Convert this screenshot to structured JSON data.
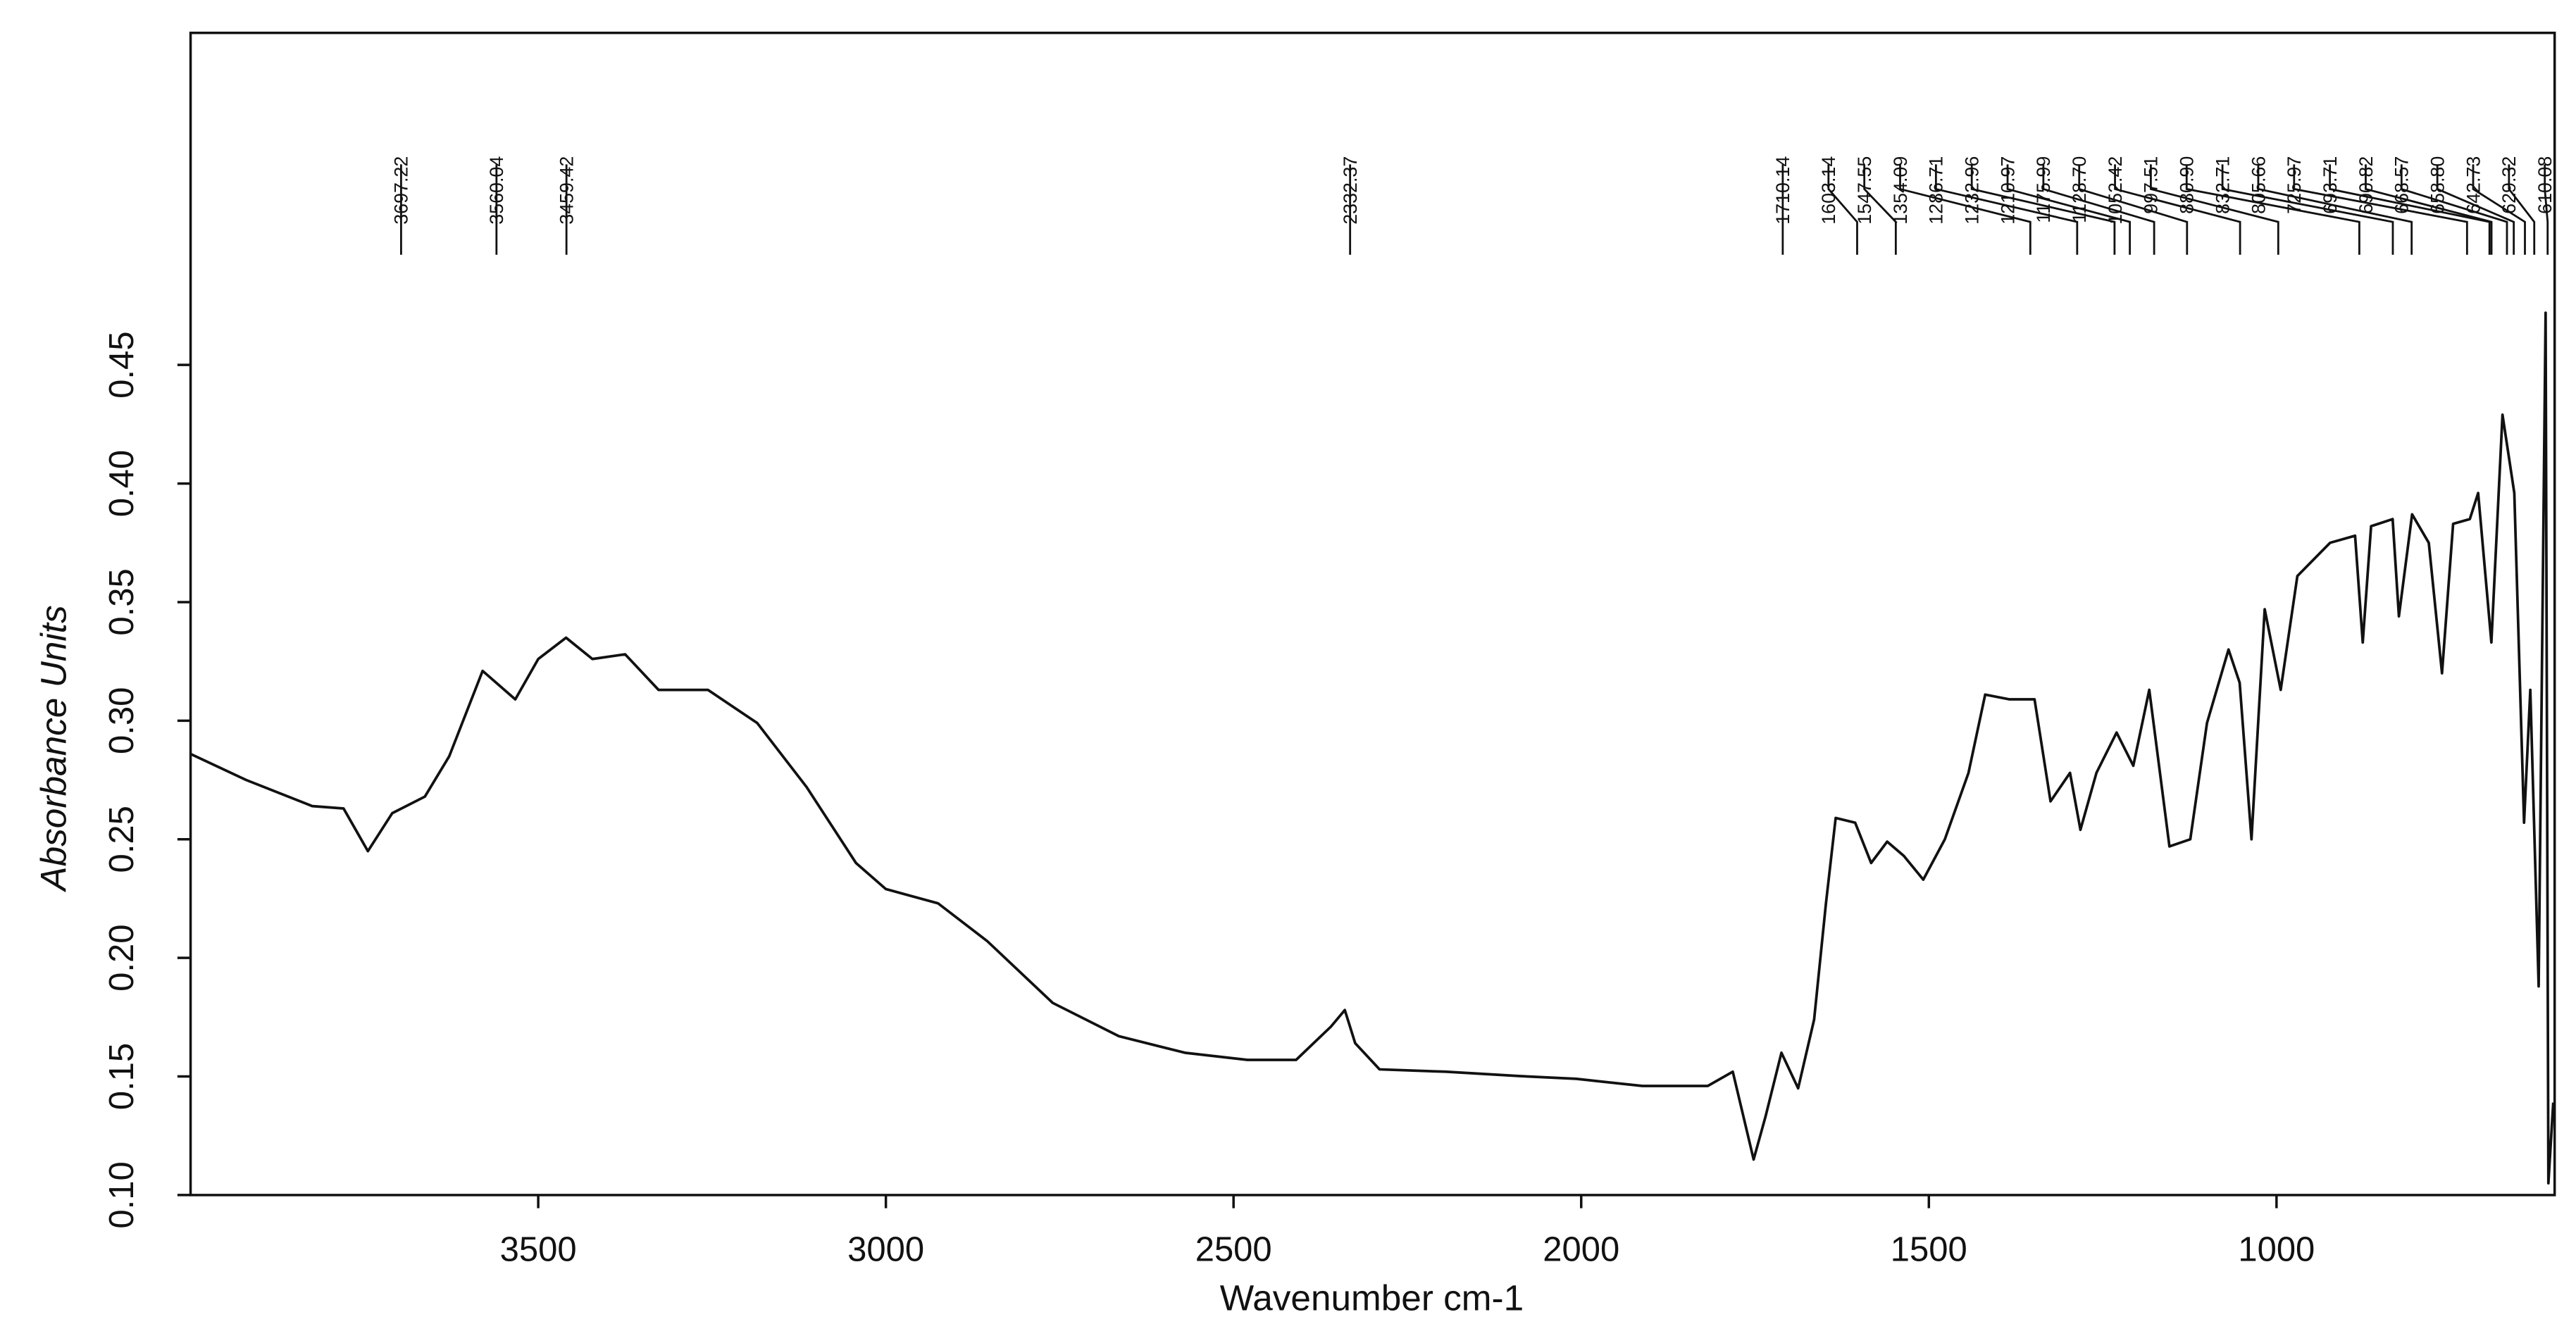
{
  "chart_data": {
    "type": "line",
    "x_label": "Wavenumber cm-1",
    "y_label": "Absorbance Units",
    "xlim": [
      4000,
      600
    ],
    "ylim": [
      0.1,
      0.59
    ],
    "xticks": [
      3500,
      3000,
      2500,
      2000,
      1500,
      1000
    ],
    "yticks": [
      {
        "value": 0.1,
        "label": "0.10"
      },
      0.15,
      {
        "value": 0.2,
        "label": "0.20"
      },
      0.25,
      {
        "value": 0.3,
        "label": "0.30"
      },
      0.35,
      {
        "value": 0.4,
        "label": "0.40"
      },
      0.45
    ],
    "color": "#111111",
    "peaks": [
      3697.22,
      3560.04,
      3459.42,
      2332.37,
      1710.14,
      1603.14,
      1547.55,
      1354.09,
      1286.71,
      1232.96,
      1210.97,
      1175.99,
      {
        "value": 1128.7,
        "label": "1128.70"
      },
      1052.42,
      997.51,
      {
        "value": 880.9,
        "label": "880.90"
      },
      832.71,
      805.66,
      725.97,
      693.71,
      690.82,
      668.57,
      {
        "value": 658.8,
        "label": "658.80"
      },
      642.73,
      629.32,
      610.08
    ],
    "x": [
      4000,
      3920,
      3825,
      3780,
      3745,
      3710,
      3663,
      3628,
      3580,
      3533,
      3500,
      3460,
      3422,
      3375,
      3327,
      3256,
      3185,
      3114,
      3043,
      3000,
      2925,
      2854,
      2760,
      2665,
      2570,
      2480,
      2410,
      2385,
      2360,
      2340,
      2325,
      2290,
      2195,
      2078,
      2007,
      1912,
      1818,
      1782,
      1752,
      1735,
      1712,
      1688,
      1665,
      1648,
      1634,
      1606,
      1583,
      1560,
      1536,
      1508,
      1477,
      1443,
      1419,
      1384,
      1348,
      1325,
      1297,
      1282,
      1259,
      1230,
      1206,
      1183,
      1154,
      1124,
      1100,
      1069,
      1053,
      1036,
      1017,
      994,
      970,
      923,
      887,
      876,
      864,
      833,
      824,
      805,
      781,
      762,
      746,
      722,
      710,
      691,
      675,
      658,
      644,
      635,
      623,
      613,
      609,
      602
    ],
    "values": [
      0.286,
      0.275,
      0.264,
      0.263,
      0.245,
      0.261,
      0.268,
      0.285,
      0.321,
      0.309,
      0.326,
      0.335,
      0.326,
      0.328,
      0.313,
      0.313,
      0.299,
      0.272,
      0.24,
      0.229,
      0.223,
      0.207,
      0.181,
      0.167,
      0.16,
      0.157,
      0.157,
      0.164,
      0.171,
      0.178,
      0.164,
      0.153,
      0.152,
      0.15,
      0.149,
      0.146,
      0.146,
      0.152,
      0.115,
      0.133,
      0.16,
      0.145,
      0.174,
      0.223,
      0.259,
      0.257,
      0.24,
      0.249,
      0.243,
      0.233,
      0.25,
      0.278,
      0.311,
      0.309,
      0.309,
      0.266,
      0.278,
      0.254,
      0.278,
      0.295,
      0.281,
      0.313,
      0.247,
      0.25,
      0.299,
      0.33,
      0.316,
      0.25,
      0.347,
      0.313,
      0.361,
      0.375,
      0.378,
      0.333,
      0.382,
      0.385,
      0.344,
      0.387,
      0.375,
      0.32,
      0.383,
      0.385,
      0.396,
      0.333,
      0.429,
      0.396,
      0.257,
      0.313,
      0.188,
      0.472,
      0.105,
      0.139
    ]
  }
}
